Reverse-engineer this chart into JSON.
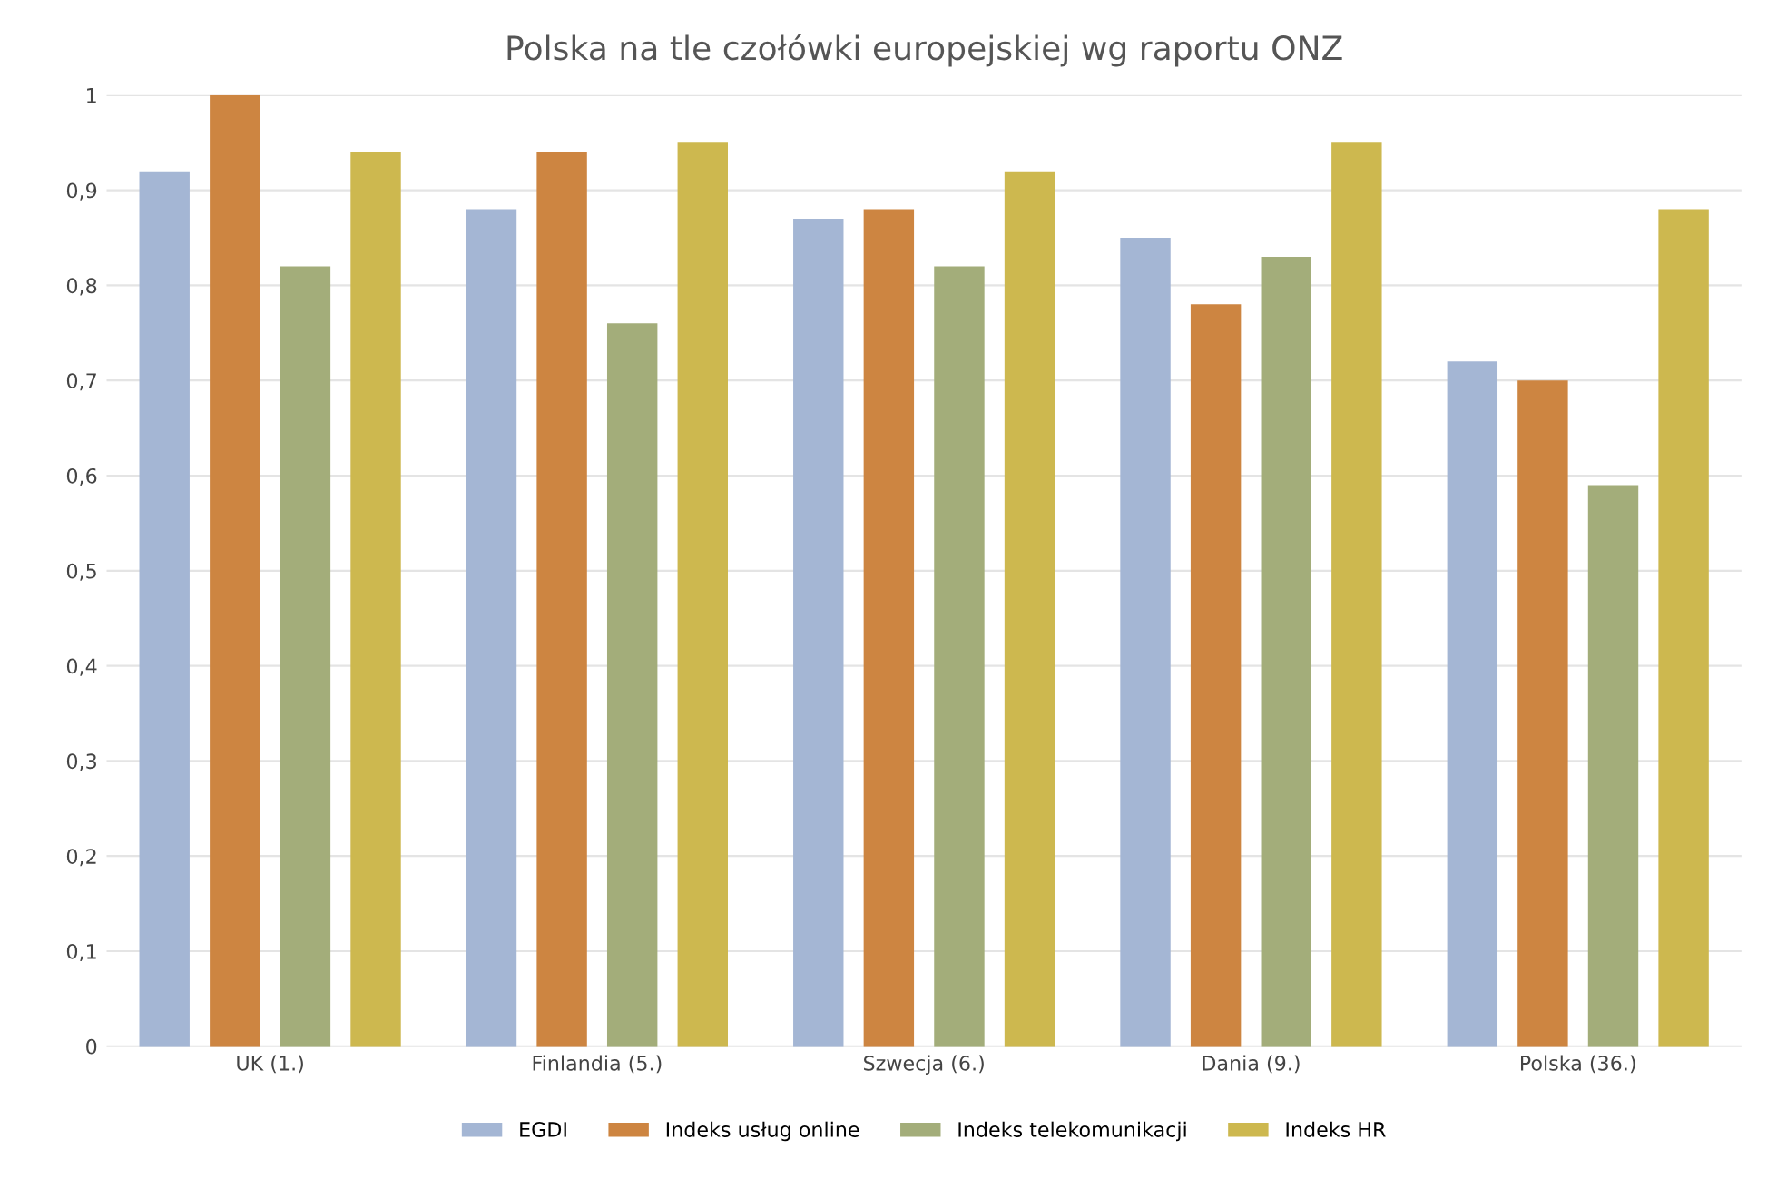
{
  "chart_data": {
    "type": "bar",
    "title": "Polska na tle czołówki europejskiej wg raportu ONZ",
    "categories": [
      "UK (1.)",
      "Finlandia (5.)",
      "Szwecja (6.)",
      "Dania (9.)",
      "Polska (36.)"
    ],
    "series": [
      {
        "name": "EGDI",
        "color": "#a4b6d4",
        "values": [
          0.92,
          0.88,
          0.87,
          0.85,
          0.72
        ]
      },
      {
        "name": "Indeks usług online",
        "color": "#cd8541",
        "values": [
          1.0,
          0.94,
          0.88,
          0.78,
          0.7
        ]
      },
      {
        "name": "Indeks telekomunikacji",
        "color": "#a3ad7a",
        "values": [
          0.82,
          0.76,
          0.82,
          0.83,
          0.59
        ]
      },
      {
        "name": "Indeks HR",
        "color": "#cdb84f",
        "values": [
          0.94,
          0.95,
          0.92,
          0.95,
          0.88
        ]
      }
    ],
    "ylim": [
      0,
      1
    ],
    "yticks": [
      0,
      {
        "value": 0.1,
        "label": "0,1"
      },
      {
        "value": 0.2,
        "label": "0,2"
      },
      {
        "value": 0.3,
        "label": "0,3"
      },
      {
        "value": 0.4,
        "label": "0,4"
      },
      {
        "value": 0.5,
        "label": "0,5"
      },
      {
        "value": 0.6,
        "label": "0,6"
      },
      {
        "value": 0.7,
        "label": "0,7"
      },
      {
        "value": 0.8,
        "label": "0,8"
      },
      {
        "value": 0.9,
        "label": "0,9"
      },
      1
    ],
    "grid": "y",
    "legend": "bottom"
  }
}
